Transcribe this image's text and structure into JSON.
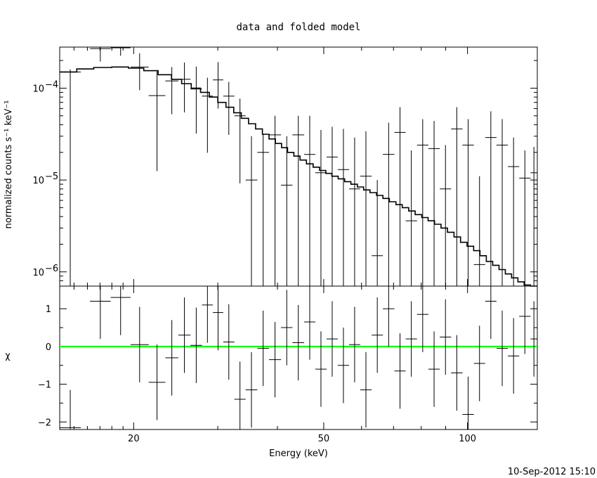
{
  "chart_data": [
    {
      "type": "line",
      "panel": "spectrum",
      "title": "data and folded model",
      "xlabel": "Energy (keV)",
      "ylabel": "normalized counts s⁻¹ keV⁻¹",
      "x_scale": "log",
      "y_scale": "log",
      "xlim": [
        14,
        140
      ],
      "ylim": [
        7e-07,
        0.00028
      ],
      "y_ticks": [
        {
          "value": 1e-06,
          "base": "10",
          "exp": "−6"
        },
        {
          "value": 1e-05,
          "base": "10",
          "exp": "−5"
        },
        {
          "value": 0.0001,
          "base": "10",
          "exp": "−4"
        }
      ],
      "data_points": [
        {
          "e": [
            14.0,
            15.5
          ],
          "y": 0.00015,
          "ylo": 7e-07,
          "yhi": 0.00016
        },
        {
          "e": [
            16.2,
            17.9
          ],
          "y": 0.00027,
          "ylo": 0.000195,
          "yhi": 0.00029
        },
        {
          "e": [
            17.9,
            19.7
          ],
          "y": 0.000275,
          "ylo": 0.000225,
          "yhi": 0.00029
        },
        {
          "e": [
            19.7,
            21.5
          ],
          "y": 0.00017,
          "ylo": 9.5e-05,
          "yhi": 0.00024
        },
        {
          "e": [
            21.5,
            23.3
          ],
          "y": 8.3e-05,
          "ylo": 1.25e-05,
          "yhi": 0.000152
        },
        {
          "e": [
            23.3,
            24.8
          ],
          "y": 0.00012,
          "ylo": 5.2e-05,
          "yhi": 0.00017
        },
        {
          "e": [
            24.8,
            26.3
          ],
          "y": 0.000125,
          "ylo": 5.45e-05,
          "yhi": 0.00019
        },
        {
          "e": [
            26.3,
            27.8
          ],
          "y": 9.8e-05,
          "ylo": 3.2e-05,
          "yhi": 0.000172
        },
        {
          "e": [
            27.8,
            29.3
          ],
          "y": 8.2e-05,
          "ylo": 1.98e-05,
          "yhi": 0.00013
        },
        {
          "e": [
            29.3,
            30.8
          ],
          "y": 0.000123,
          "ylo": 6e-05,
          "yhi": 0.000192
        },
        {
          "e": [
            30.8,
            32.5
          ],
          "y": 8.2e-05,
          "ylo": 3.1e-05,
          "yhi": 0.000117
        },
        {
          "e": [
            32.5,
            34.3
          ],
          "y": 5e-05,
          "ylo": 9.2e-06,
          "yhi": 7.7e-05
        },
        {
          "e": [
            34.3,
            36.3
          ],
          "y": 1e-05,
          "ylo": 7e-07,
          "yhi": 3e-05
        },
        {
          "e": [
            36.3,
            38.4
          ],
          "y": 2e-05,
          "ylo": 7e-07,
          "yhi": 3.2e-05
        },
        {
          "e": [
            38.4,
            40.7
          ],
          "y": 3.1e-05,
          "ylo": 7e-07,
          "yhi": 5e-05
        },
        {
          "e": [
            40.7,
            43.0
          ],
          "y": 8.8e-06,
          "ylo": 7e-07,
          "yhi": 3e-05
        },
        {
          "e": [
            43.0,
            45.5
          ],
          "y": 3.1e-05,
          "ylo": 7e-07,
          "yhi": 5e-05
        },
        {
          "e": [
            45.5,
            48.0
          ],
          "y": 1.9e-05,
          "ylo": 7e-07,
          "yhi": 5e-05
        },
        {
          "e": [
            48.0,
            50.7
          ],
          "y": 1.2e-05,
          "ylo": 7e-07,
          "yhi": 3.5e-05
        },
        {
          "e": [
            50.7,
            53.5
          ],
          "y": 1.78e-05,
          "ylo": 7e-07,
          "yhi": 3.8e-05
        },
        {
          "e": [
            53.5,
            56.5
          ],
          "y": 1.3e-05,
          "ylo": 7e-07,
          "yhi": 3.6e-05
        },
        {
          "e": [
            56.5,
            59.6
          ],
          "y": 8e-06,
          "ylo": 7e-07,
          "yhi": 2.9e-05
        },
        {
          "e": [
            59.6,
            63.0
          ],
          "y": 1.1e-05,
          "ylo": 7e-07,
          "yhi": 3.4e-05
        },
        {
          "e": [
            63.0,
            66.5
          ],
          "y": 1.5e-06,
          "ylo": 7e-07,
          "yhi": 1e-05
        },
        {
          "e": [
            66.5,
            70.3
          ],
          "y": 1.9e-05,
          "ylo": 7e-07,
          "yhi": 4.2e-05
        },
        {
          "e": [
            70.3,
            74.2
          ],
          "y": 3.3e-05,
          "ylo": 7e-07,
          "yhi": 6.2e-05
        },
        {
          "e": [
            74.2,
            78.4
          ],
          "y": 3.6e-06,
          "ylo": 7e-07,
          "yhi": 2.1e-05
        },
        {
          "e": [
            78.4,
            82.8
          ],
          "y": 2.4e-05,
          "ylo": 7e-07,
          "yhi": 4.6e-05
        },
        {
          "e": [
            82.8,
            87.5
          ],
          "y": 2.2e-05,
          "ylo": 7e-07,
          "yhi": 4.4e-05
        },
        {
          "e": [
            87.5,
            92.4
          ],
          "y": 8e-06,
          "ylo": 7e-07,
          "yhi": 2.4e-05
        },
        {
          "e": [
            92.4,
            97.6
          ],
          "y": 3.6e-05,
          "ylo": 7e-07,
          "yhi": 6.2e-05
        },
        {
          "e": [
            97.6,
            103.1
          ],
          "y": 2.4e-05,
          "ylo": 7e-07,
          "yhi": 4.6e-05
        },
        {
          "e": [
            103.1,
            108.9
          ],
          "y": 1.2e-06,
          "ylo": 7e-07,
          "yhi": 1.1e-05
        },
        {
          "e": [
            108.9,
            115.0
          ],
          "y": 2.9e-05,
          "ylo": 7e-07,
          "yhi": 5.6e-05
        },
        {
          "e": [
            115.0,
            121.5
          ],
          "y": 2.4e-05,
          "ylo": 7e-07,
          "yhi": 4.6e-05
        },
        {
          "e": [
            121.5,
            128.3
          ],
          "y": 1.4e-05,
          "ylo": 7e-07,
          "yhi": 2.9e-05
        },
        {
          "e": [
            128.3,
            135.5
          ],
          "y": 1.05e-05,
          "ylo": 7e-07,
          "yhi": 2.1e-05
        },
        {
          "e": [
            135.5,
            140.0
          ],
          "y": 1.2e-05,
          "ylo": 7e-07,
          "yhi": 2.3e-05
        }
      ],
      "model_steps": [
        [
          14.0,
          0.00015
        ],
        [
          15.2,
          0.000162
        ],
        [
          16.5,
          0.000168
        ],
        [
          18.0,
          0.00017
        ],
        [
          19.5,
          0.000165
        ],
        [
          21.0,
          0.000155
        ],
        [
          22.5,
          0.00014
        ],
        [
          24.0,
          0.000125
        ],
        [
          25.2,
          0.000112
        ],
        [
          26.4,
          0.0001
        ],
        [
          27.6,
          9e-05
        ],
        [
          28.8,
          8e-05
        ],
        [
          30.0,
          7e-05
        ],
        [
          31.2,
          6.2e-05
        ],
        [
          32.4,
          5.4e-05
        ],
        [
          33.6,
          4.7e-05
        ],
        [
          34.8,
          4.1e-05
        ],
        [
          36.0,
          3.6e-05
        ],
        [
          37.2,
          3.15e-05
        ],
        [
          38.4,
          2.8e-05
        ],
        [
          39.6,
          2.5e-05
        ],
        [
          40.8,
          2.25e-05
        ],
        [
          42.0,
          2e-05
        ],
        [
          43.3,
          1.82e-05
        ],
        [
          44.6,
          1.65e-05
        ],
        [
          46.0,
          1.5e-05
        ],
        [
          47.5,
          1.38e-05
        ],
        [
          49.0,
          1.27e-05
        ],
        [
          50.5,
          1.18e-05
        ],
        [
          52.0,
          1.1e-05
        ],
        [
          53.6,
          1.03e-05
        ],
        [
          55.3,
          9.6e-06
        ],
        [
          57.0,
          9e-06
        ],
        [
          58.8,
          8.4e-06
        ],
        [
          60.6,
          7.8e-06
        ],
        [
          62.5,
          7.3e-06
        ],
        [
          64.5,
          6.8e-06
        ],
        [
          66.5,
          6.3e-06
        ],
        [
          68.6,
          5.8e-06
        ],
        [
          70.8,
          5.4e-06
        ],
        [
          73.0,
          5e-06
        ],
        [
          75.3,
          4.6e-06
        ],
        [
          77.7,
          4.2e-06
        ],
        [
          80.2,
          3.9e-06
        ],
        [
          82.7,
          3.6e-06
        ],
        [
          85.3,
          3.3e-06
        ],
        [
          88.0,
          3e-06
        ],
        [
          90.8,
          2.7e-06
        ],
        [
          93.7,
          2.4e-06
        ],
        [
          96.7,
          2.1e-06
        ],
        [
          99.8,
          1.9e-06
        ],
        [
          103.0,
          1.7e-06
        ],
        [
          106.2,
          1.5e-06
        ],
        [
          109.5,
          1.3e-06
        ],
        [
          112.9,
          1.18e-06
        ],
        [
          116.4,
          1.06e-06
        ],
        [
          120.0,
          9.5e-07
        ],
        [
          123.7,
          8.6e-07
        ],
        [
          127.5,
          7.8e-07
        ],
        [
          131.4,
          7.2e-07
        ],
        [
          135.5,
          6.8e-07
        ],
        [
          140.0,
          6.8e-07
        ]
      ]
    },
    {
      "type": "scatter",
      "panel": "residuals",
      "xlabel": "Energy (keV)",
      "ylabel": "χ",
      "x_scale": "log",
      "xlim": [
        14,
        140
      ],
      "ylim": [
        -2.2,
        1.6
      ],
      "x_ticks": [
        20,
        50,
        100
      ],
      "y_ticks": [
        1,
        0,
        -1,
        -2
      ],
      "x_tick_labels": [
        "20",
        "50",
        "100"
      ],
      "y_tick_labels": [
        "1",
        "0",
        "−1",
        "−2"
      ],
      "zero_line_color": "#00ff00",
      "residuals": [
        {
          "e": [
            14.0,
            15.5
          ],
          "v": -2.15,
          "err": 1.0
        },
        {
          "e": [
            16.2,
            17.9
          ],
          "v": 1.2,
          "err": 1.0
        },
        {
          "e": [
            17.9,
            19.7
          ],
          "v": 1.3,
          "err": 1.0
        },
        {
          "e": [
            19.7,
            21.5
          ],
          "v": 0.05,
          "err": 1.0
        },
        {
          "e": [
            21.5,
            23.3
          ],
          "v": -0.95,
          "err": 1.0
        },
        {
          "e": [
            23.3,
            24.8
          ],
          "v": -0.3,
          "err": 1.0
        },
        {
          "e": [
            24.8,
            26.3
          ],
          "v": 0.3,
          "err": 1.0
        },
        {
          "e": [
            26.3,
            27.8
          ],
          "v": 0.03,
          "err": 1.0
        },
        {
          "e": [
            27.8,
            29.3
          ],
          "v": 1.1,
          "err": 1.0
        },
        {
          "e": [
            29.3,
            30.8
          ],
          "v": 0.9,
          "err": 1.0
        },
        {
          "e": [
            30.8,
            32.5
          ],
          "v": 0.12,
          "err": 1.0
        },
        {
          "e": [
            32.5,
            34.3
          ],
          "v": -1.4,
          "err": 1.0
        },
        {
          "e": [
            34.3,
            36.3
          ],
          "v": -1.15,
          "err": 1.0
        },
        {
          "e": [
            36.3,
            38.4
          ],
          "v": -0.05,
          "err": 1.0
        },
        {
          "e": [
            38.4,
            40.7
          ],
          "v": -0.35,
          "err": 1.0
        },
        {
          "e": [
            40.7,
            43.0
          ],
          "v": 0.5,
          "err": 1.0
        },
        {
          "e": [
            43.0,
            45.5
          ],
          "v": 0.1,
          "err": 1.0
        },
        {
          "e": [
            45.5,
            48.0
          ],
          "v": 0.65,
          "err": 1.0
        },
        {
          "e": [
            48.0,
            50.7
          ],
          "v": -0.6,
          "err": 1.0
        },
        {
          "e": [
            50.7,
            53.5
          ],
          "v": 0.2,
          "err": 1.0
        },
        {
          "e": [
            53.5,
            56.5
          ],
          "v": -0.5,
          "err": 1.0
        },
        {
          "e": [
            56.5,
            59.6
          ],
          "v": 0.05,
          "err": 1.0
        },
        {
          "e": [
            59.6,
            63.0
          ],
          "v": -1.15,
          "err": 1.0
        },
        {
          "e": [
            63.0,
            66.5
          ],
          "v": 0.3,
          "err": 1.0
        },
        {
          "e": [
            66.5,
            70.3
          ],
          "v": 1.0,
          "err": 1.0
        },
        {
          "e": [
            70.3,
            74.2
          ],
          "v": -0.65,
          "err": 1.0
        },
        {
          "e": [
            74.2,
            78.4
          ],
          "v": 0.2,
          "err": 1.0
        },
        {
          "e": [
            78.4,
            82.8
          ],
          "v": 0.85,
          "err": 1.0
        },
        {
          "e": [
            82.8,
            87.5
          ],
          "v": -0.6,
          "err": 1.0
        },
        {
          "e": [
            87.5,
            92.4
          ],
          "v": 0.25,
          "err": 1.0
        },
        {
          "e": [
            92.4,
            97.6
          ],
          "v": -0.7,
          "err": 1.0
        },
        {
          "e": [
            97.6,
            103.1
          ],
          "v": -1.8,
          "err": 1.0
        },
        {
          "e": [
            103.1,
            108.9
          ],
          "v": -0.45,
          "err": 1.0
        },
        {
          "e": [
            108.9,
            115.0
          ],
          "v": 1.2,
          "err": 1.0
        },
        {
          "e": [
            115.0,
            121.5
          ],
          "v": -0.05,
          "err": 1.0
        },
        {
          "e": [
            121.5,
            128.3
          ],
          "v": -0.25,
          "err": 1.0
        },
        {
          "e": [
            128.3,
            135.5
          ],
          "v": 0.8,
          "err": 1.0
        },
        {
          "e": [
            135.5,
            140.0
          ],
          "v": 0.2,
          "err": 1.0
        }
      ]
    }
  ],
  "footer": {
    "timestamp": "10-Sep-2012 15:10"
  }
}
